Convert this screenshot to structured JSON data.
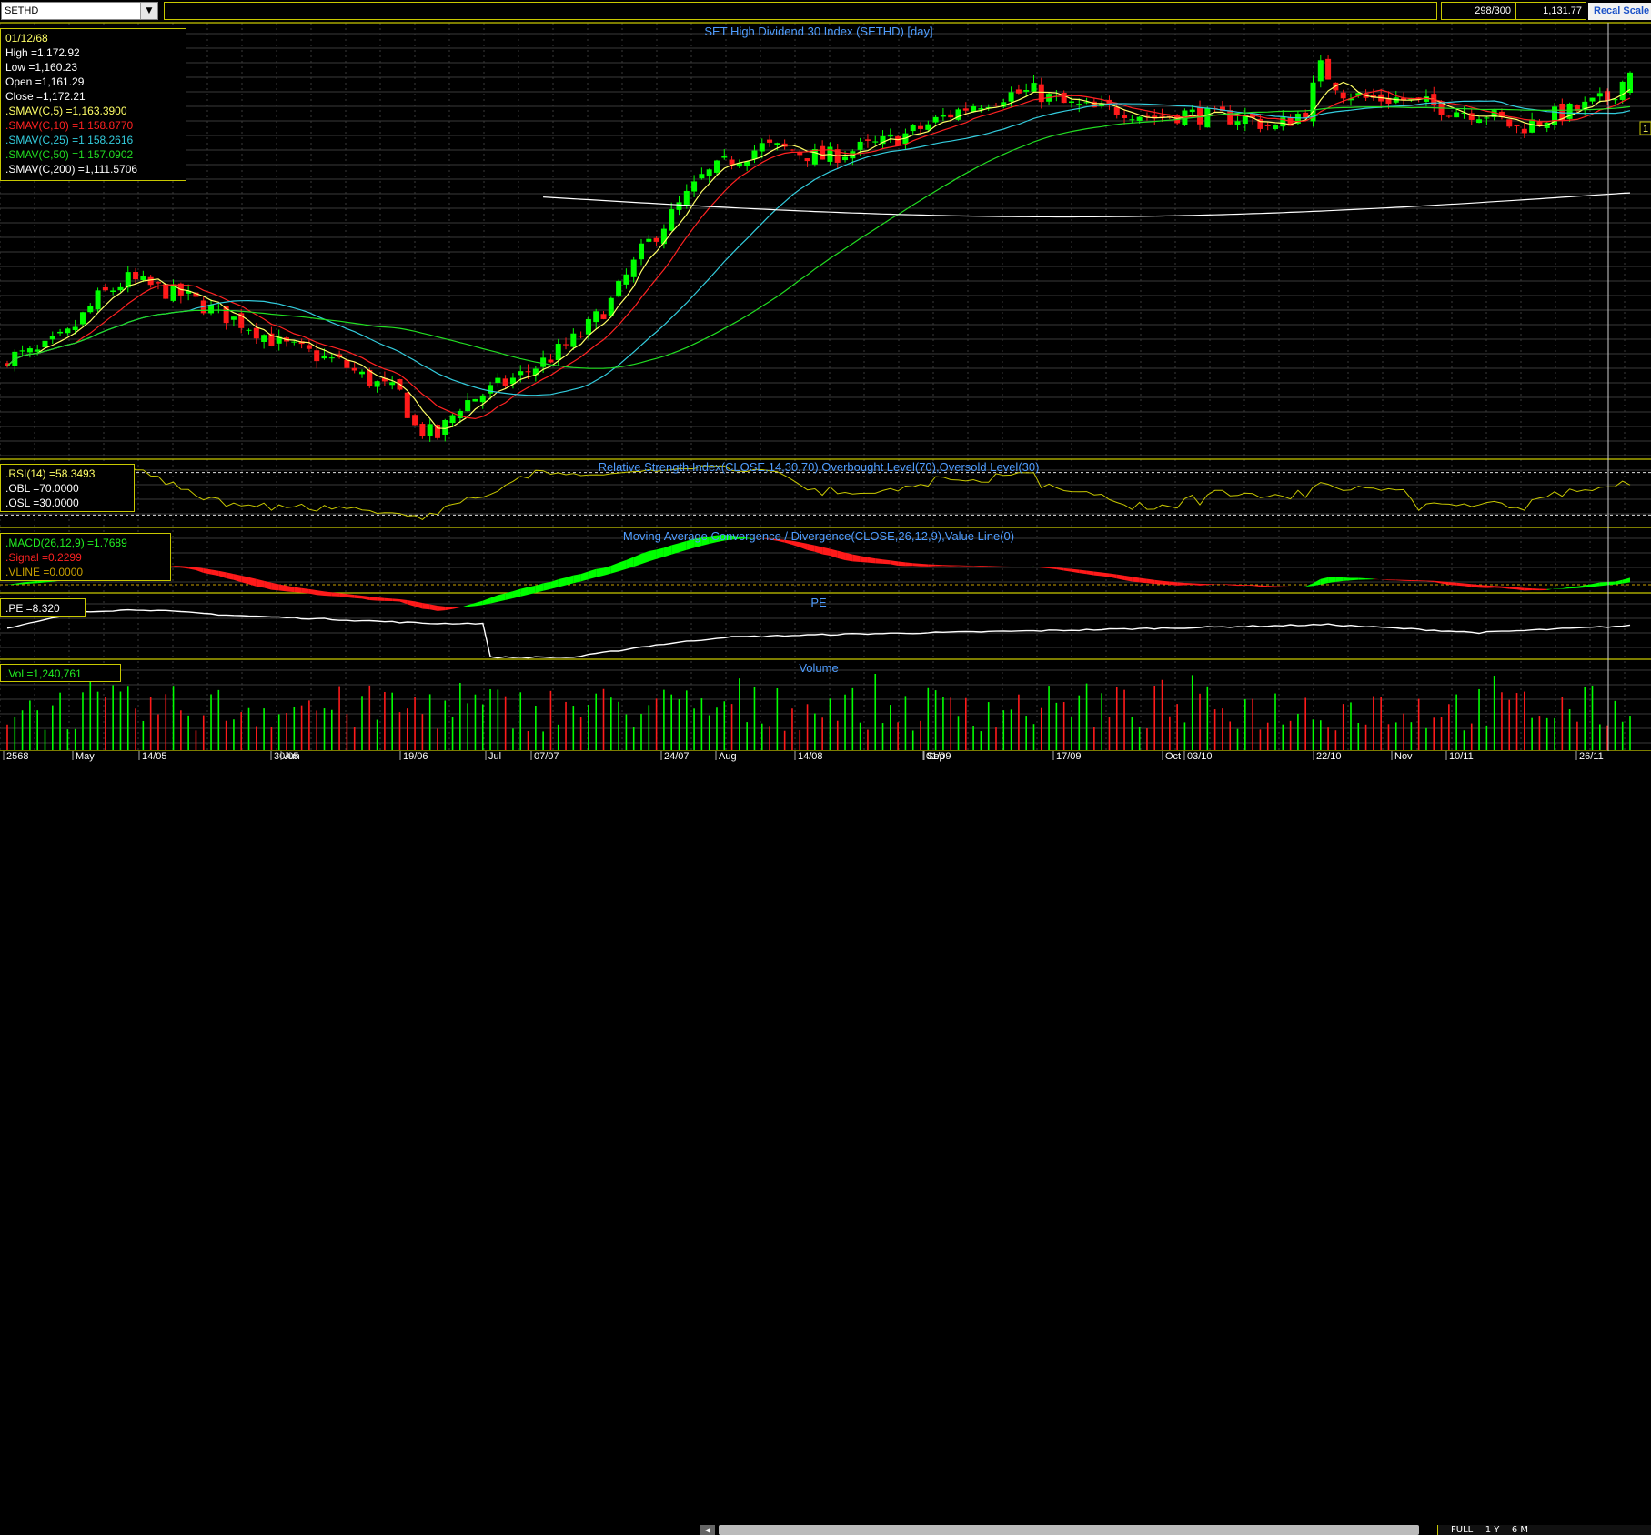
{
  "toolbar": {
    "symbol": "SETHD",
    "bar_count": "298/300",
    "last_value": "1,131.77",
    "recal_label": "Recal Scale"
  },
  "colors": {
    "background": "#000000",
    "panel_border": "#c8c800",
    "grid": "#3a3a3a",
    "up": "#00ff00",
    "down": "#ff1a1a",
    "sma5": "#ffff66",
    "sma10": "#ff2222",
    "sma25": "#33ccdd",
    "sma50": "#22dd22",
    "sma200": "#ffffff",
    "title_text": "#4f9dff",
    "rsi": "#c8c800",
    "pe": "#ffffff"
  },
  "price_panel": {
    "title": "SET High Dividend 30 Index (SETHD) [day]",
    "info": {
      "date": "01/12/68",
      "high": "High  =1,172.92",
      "low": "Low  =1,160.23",
      "open": "Open  =1,161.29",
      "close": "Close  =1,172.21",
      "sma5": ".SMAV(C,5)   =1,163.3900",
      "sma10": ".SMAV(C,10)   =1,158.8770",
      "sma25": ".SMAV(C,25)   =1,158.2616",
      "sma50": ".SMAV(C,50)   =1,157.0902",
      "sma200": ".SMAV(C,200)   =1,111.5706"
    },
    "right_label": "1"
  },
  "rsi_panel": {
    "title": "Relative Strength Index(CLOSE,14,30,70),Overbought Level(70),Oversold Level(30)",
    "info": {
      "rsi": ".RSI(14)    =58.3493",
      "obl": ".OBL   =70.0000",
      "osl": ".OSL   =30.0000"
    }
  },
  "macd_panel": {
    "title": "Moving Average Convergence / Divergence(CLOSE,26,12,9),Value Line(0)",
    "info": {
      "macd": ".MACD(26,12,9)    =1.7689",
      "signal": ".Signal   =0.2299",
      "vline": ".VLINE   =0.0000"
    }
  },
  "pe_panel": {
    "title": "PE",
    "info": {
      "pe": ".PE   =8.320"
    }
  },
  "volume_panel": {
    "title": "Volume",
    "info": {
      "vol": ".Vol   =1,240,761"
    }
  },
  "x_axis": {
    "labels": [
      "2568",
      "May",
      "14/05",
      "30/05",
      "Jun",
      "19/06",
      "Jul",
      "07/07",
      "24/07",
      "Aug",
      "14/08",
      "01/09",
      "Sep",
      "17/09",
      "Oct",
      "03/10",
      "22/10",
      "Nov",
      "10/11",
      "26/11"
    ]
  },
  "navigation": {
    "labels": [
      "FULL",
      "1 Y",
      "6 M"
    ]
  },
  "chart_data": {
    "type": "candlestick",
    "title": "SET High Dividend 30 Index (SETHD) [day]",
    "period": "day",
    "anchors": [
      {
        "day": 0,
        "price": 1018
      },
      {
        "day": 4,
        "price": 1020
      },
      {
        "day": 8,
        "price": 1030
      },
      {
        "day": 12,
        "price": 1050
      },
      {
        "day": 16,
        "price": 1060
      },
      {
        "day": 20,
        "price": 1055
      },
      {
        "day": 24,
        "price": 1050
      },
      {
        "day": 28,
        "price": 1042
      },
      {
        "day": 32,
        "price": 1035
      },
      {
        "day": 36,
        "price": 1025
      },
      {
        "day": 40,
        "price": 1020
      },
      {
        "day": 44,
        "price": 1015
      },
      {
        "day": 48,
        "price": 1005
      },
      {
        "day": 52,
        "price": 998
      },
      {
        "day": 54,
        "price": 980
      },
      {
        "day": 57,
        "price": 975
      },
      {
        "day": 60,
        "price": 992
      },
      {
        "day": 64,
        "price": 1000
      },
      {
        "day": 68,
        "price": 1008
      },
      {
        "day": 72,
        "price": 1018
      },
      {
        "day": 76,
        "price": 1030
      },
      {
        "day": 80,
        "price": 1048
      },
      {
        "day": 84,
        "price": 1075
      },
      {
        "day": 88,
        "price": 1095
      },
      {
        "day": 92,
        "price": 1115
      },
      {
        "day": 96,
        "price": 1125
      },
      {
        "day": 100,
        "price": 1132
      },
      {
        "day": 104,
        "price": 1130
      },
      {
        "day": 108,
        "price": 1126
      },
      {
        "day": 112,
        "price": 1130
      },
      {
        "day": 116,
        "price": 1134
      },
      {
        "day": 120,
        "price": 1140
      },
      {
        "day": 124,
        "price": 1148
      },
      {
        "day": 128,
        "price": 1155
      },
      {
        "day": 132,
        "price": 1160
      },
      {
        "day": 136,
        "price": 1162
      },
      {
        "day": 140,
        "price": 1155
      },
      {
        "day": 144,
        "price": 1152
      },
      {
        "day": 148,
        "price": 1152
      },
      {
        "day": 152,
        "price": 1148
      },
      {
        "day": 156,
        "price": 1150
      },
      {
        "day": 160,
        "price": 1148
      },
      {
        "day": 164,
        "price": 1148
      },
      {
        "day": 168,
        "price": 1142
      },
      {
        "day": 172,
        "price": 1152
      },
      {
        "day": 174,
        "price": 1175
      },
      {
        "day": 177,
        "price": 1162
      },
      {
        "day": 180,
        "price": 1158
      },
      {
        "day": 184,
        "price": 1158
      },
      {
        "day": 188,
        "price": 1155
      },
      {
        "day": 192,
        "price": 1152
      },
      {
        "day": 196,
        "price": 1150
      },
      {
        "day": 200,
        "price": 1142
      },
      {
        "day": 204,
        "price": 1148
      },
      {
        "day": 208,
        "price": 1152
      },
      {
        "day": 212,
        "price": 1158
      },
      {
        "day": 215,
        "price": 1172
      }
    ],
    "last_bar": {
      "date": "01/12/68",
      "open": 1161.29,
      "high": 1172.92,
      "low": 1160.23,
      "close": 1172.21
    },
    "moving_averages": [
      {
        "name": ".SMAV(C,5)",
        "period": 5,
        "last": 1163.39
      },
      {
        "name": ".SMAV(C,10)",
        "period": 10,
        "last": 1158.877
      },
      {
        "name": ".SMAV(C,25)",
        "period": 25,
        "last": 1158.2616
      },
      {
        "name": ".SMAV(C,50)",
        "period": 50,
        "last": 1157.0902
      },
      {
        "name": ".SMAV(C,200)",
        "period": 200,
        "last": 1111.5706
      }
    ],
    "price_range": [
      965,
      1182
    ],
    "rsi": {
      "period": 14,
      "overbought": 70,
      "oversold": 30,
      "last": 58.3493,
      "range": [
        20,
        80
      ]
    },
    "macd": {
      "params": [
        26,
        12,
        9
      ],
      "last_macd": 1.7689,
      "last_signal": 0.2299,
      "value_line": 0
    },
    "pe": {
      "last": 8.32,
      "levels": [
        {
          "day": 0,
          "pe": 8.05
        },
        {
          "day": 10,
          "pe": 8.35
        },
        {
          "day": 18,
          "pe": 8.38
        },
        {
          "day": 30,
          "pe": 8.28
        },
        {
          "day": 45,
          "pe": 8.2
        },
        {
          "day": 56,
          "pe": 8.14
        },
        {
          "day": 63,
          "pe": 8.14
        },
        {
          "day": 64,
          "pe": 7.55
        },
        {
          "day": 75,
          "pe": 7.55
        },
        {
          "day": 85,
          "pe": 7.75
        },
        {
          "day": 95,
          "pe": 7.9
        },
        {
          "day": 110,
          "pe": 7.95
        },
        {
          "day": 140,
          "pe": 8.02
        },
        {
          "day": 175,
          "pe": 8.12
        },
        {
          "day": 195,
          "pe": 7.98
        },
        {
          "day": 215,
          "pe": 8.1
        }
      ]
    },
    "volume": {
      "last": 1240761
    }
  }
}
